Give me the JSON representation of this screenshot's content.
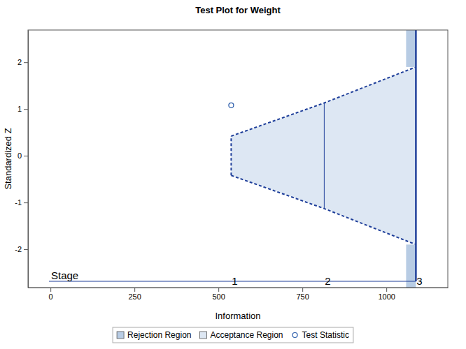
{
  "chart_data": {
    "type": "sequential_test",
    "title": "Test Plot for Weight",
    "x_label": "Information",
    "y_label": "Standardized Z",
    "xlim": [
      -67,
      1183
    ],
    "ylim": [
      -2.82,
      2.69
    ],
    "xticks": [
      0,
      250,
      500,
      750,
      1000
    ],
    "yticks": [
      -2,
      -1,
      0,
      1,
      2
    ],
    "stage_title": "Stage",
    "stage_labels": [
      "1",
      "2",
      "3"
    ],
    "legend": "bottom",
    "series": [
      {
        "name": "Rejection Region",
        "type": "region",
        "color": "#b8cce4",
        "x": [
          1088
        ],
        "upper": [
          1.9
        ],
        "lower": [
          -1.9
        ]
      },
      {
        "name": "Acceptance Region",
        "type": "region",
        "color": "#dde7f3",
        "x": [
          538,
          815,
          1088
        ],
        "upper": [
          0.42,
          1.13,
          1.9
        ],
        "lower": [
          -0.42,
          -1.13,
          -1.9
        ]
      },
      {
        "name": "Test Statistic",
        "type": "scatter",
        "color": "#2a5caa",
        "marker": "circle",
        "x": [
          538
        ],
        "values": [
          1.08
        ]
      }
    ]
  }
}
